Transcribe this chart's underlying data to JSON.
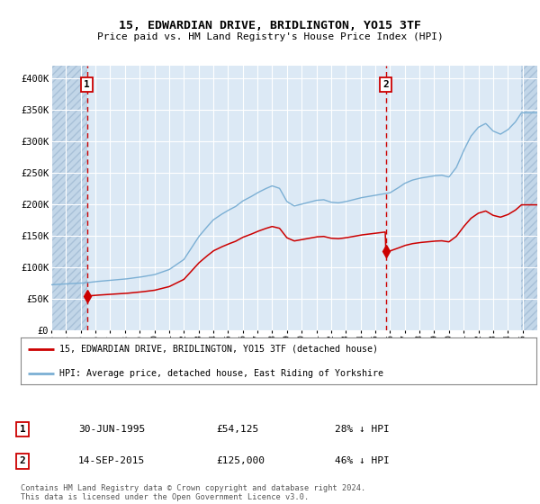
{
  "title": "15, EDWARDIAN DRIVE, BRIDLINGTON, YO15 3TF",
  "subtitle": "Price paid vs. HM Land Registry's House Price Index (HPI)",
  "legend_line1": "15, EDWARDIAN DRIVE, BRIDLINGTON, YO15 3TF (detached house)",
  "legend_line2": "HPI: Average price, detached house, East Riding of Yorkshire",
  "sale1_date_label": "30-JUN-1995",
  "sale1_price_label": "£54,125",
  "sale1_hpi_pct": "28% ↓ HPI",
  "sale2_date_label": "14-SEP-2015",
  "sale2_price_label": "£125,000",
  "sale2_hpi_pct": "46% ↓ HPI",
  "footer": "Contains HM Land Registry data © Crown copyright and database right 2024.\nThis data is licensed under the Open Government Licence v3.0.",
  "hpi_color": "#7bafd4",
  "price_color": "#cc0000",
  "marker_color": "#cc0000",
  "vline_color": "#cc0000",
  "bg_color": "#dce9f5",
  "hatch_color": "#c2d6e8",
  "grid_color": "#ffffff",
  "ylim": [
    0,
    420000
  ],
  "ytick_values": [
    0,
    50000,
    100000,
    150000,
    200000,
    250000,
    300000,
    350000,
    400000
  ],
  "ytick_labels": [
    "£0",
    "£50K",
    "£100K",
    "£150K",
    "£200K",
    "£250K",
    "£300K",
    "£350K",
    "£400K"
  ],
  "xlim": [
    1993.0,
    2026.0
  ],
  "hatch_left_end": 1995.42,
  "hatch_right_start": 2024.92,
  "sale1_x": 1995.42,
  "sale1_y": 54125,
  "sale2_x": 2015.71,
  "sale2_y": 125000,
  "hpi_anchors_x": [
    1993.0,
    1994.0,
    1995.0,
    1995.5,
    1996.0,
    1997.0,
    1998.0,
    1999.0,
    2000.0,
    2001.0,
    2002.0,
    2002.5,
    2003.0,
    2003.5,
    2004.0,
    2004.5,
    2005.0,
    2005.5,
    2006.0,
    2006.5,
    2007.0,
    2007.5,
    2008.0,
    2008.5,
    2009.0,
    2009.5,
    2010.0,
    2010.5,
    2011.0,
    2011.5,
    2012.0,
    2012.5,
    2013.0,
    2013.5,
    2014.0,
    2014.5,
    2015.0,
    2015.5,
    2016.0,
    2016.5,
    2017.0,
    2017.5,
    2018.0,
    2018.5,
    2019.0,
    2019.5,
    2020.0,
    2020.5,
    2021.0,
    2021.5,
    2022.0,
    2022.5,
    2023.0,
    2023.5,
    2024.0,
    2024.5,
    2024.92
  ],
  "hpi_anchors_y": [
    72000,
    73500,
    74500,
    75500,
    77000,
    79000,
    81000,
    84000,
    88000,
    96000,
    112000,
    130000,
    148000,
    162000,
    175000,
    183000,
    190000,
    196000,
    205000,
    211000,
    218000,
    224000,
    229000,
    225000,
    204000,
    197000,
    200000,
    203000,
    206000,
    207000,
    203000,
    202000,
    204000,
    207000,
    210000,
    212000,
    214000,
    216000,
    218000,
    225000,
    233000,
    238000,
    241000,
    243000,
    245000,
    246000,
    243000,
    258000,
    285000,
    308000,
    322000,
    328000,
    316000,
    311000,
    318000,
    330000,
    345000
  ]
}
